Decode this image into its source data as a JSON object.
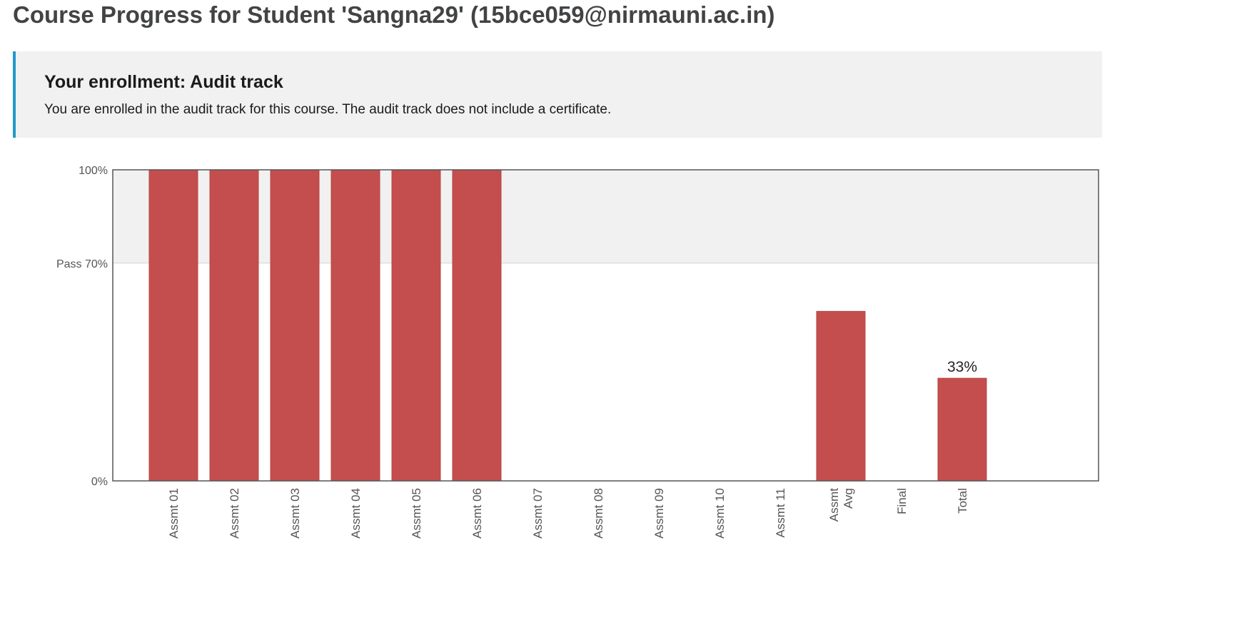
{
  "page": {
    "title": "Course Progress for Student 'Sangna29' (15bce059@nirmauni.ac.in)"
  },
  "enrollment": {
    "title": "Your enrollment: Audit track",
    "message": "You are enrolled in the audit track for this course. The audit track does not include a certificate."
  },
  "colors": {
    "bar": "#c44e4e",
    "pass_band": "#f1f1f1",
    "banner_accent": "#1f99c9"
  },
  "chart_data": {
    "type": "bar",
    "categories": [
      [
        "Assmt 01"
      ],
      [
        "Assmt 02"
      ],
      [
        "Assmt 03"
      ],
      [
        "Assmt 04"
      ],
      [
        "Assmt 05"
      ],
      [
        "Assmt 06"
      ],
      [
        "Assmt 07"
      ],
      [
        "Assmt 08"
      ],
      [
        "Assmt 09"
      ],
      [
        "Assmt 10"
      ],
      [
        "Assmt 11"
      ],
      [
        "Assmt",
        "Avg"
      ],
      [
        "Final"
      ],
      [
        "Total"
      ]
    ],
    "values": [
      100,
      100,
      100,
      100,
      100,
      100,
      0,
      0,
      0,
      0,
      0,
      54.5,
      null,
      33
    ],
    "data_labels": {
      "13": "33%"
    },
    "y_ticks": [
      {
        "value": 100,
        "label": "100%"
      },
      {
        "value": 70,
        "label": "Pass 70%"
      },
      {
        "value": 0,
        "label": "0%"
      }
    ],
    "ylim": [
      0,
      100
    ],
    "pass_threshold": 70,
    "grid": false
  }
}
